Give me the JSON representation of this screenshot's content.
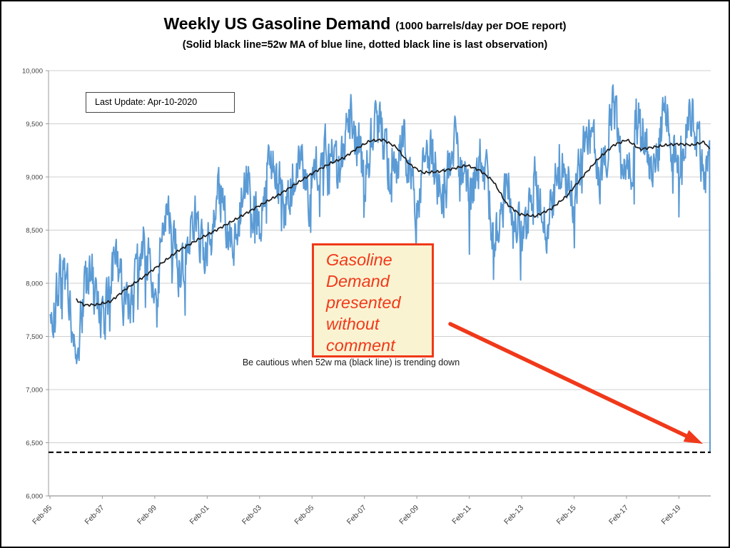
{
  "header": {
    "title": "Weekly US Gasoline Demand",
    "title_suffix": "(1000 barrels/day per DOE report)",
    "subtitle": "(Solid black line=52w MA of blue line, dotted black line is last observation)"
  },
  "annotations": {
    "last_update": "Last Update: Apr-10-2020",
    "comment_text": "Gasoline Demand presented without comment",
    "caution_text": "Be cautious when 52w ma (black line) is trending down"
  },
  "colors": {
    "blue_line": "#5B9BD5",
    "ma_line": "#1a1a1a",
    "dashed_line": "#111111",
    "red_accent": "#f0391a",
    "cream_fill": "#faf3d2",
    "gridline": "#cfcfcf",
    "axis": "#9b9b9b",
    "tick_text": "#3f3f3f"
  },
  "chart_data": {
    "type": "line",
    "title": "Weekly US Gasoline Demand",
    "units_label": "1000 barrels/day per DOE report",
    "xlabel": "",
    "ylabel": "",
    "ylim": [
      6000,
      10000
    ],
    "y_tick_step": 500,
    "y_tick_labels": [
      "10,000",
      "9,500",
      "9,000",
      "8,500",
      "8,000",
      "7,500",
      "7,000",
      "6,500",
      "6,000"
    ],
    "x_tick_labels": [
      "Feb-95",
      "Feb-97",
      "Feb-99",
      "Feb-01",
      "Feb-03",
      "Feb-05",
      "Feb-07",
      "Feb-09",
      "Feb-11",
      "Feb-13",
      "Feb-15",
      "Feb-17",
      "Feb-19"
    ],
    "x_start_year": 1995.083,
    "x_end_year": 2020.27,
    "grid": "horizontal-only",
    "legend_position": "none",
    "series": [
      {
        "name": "Weekly US gasoline demand",
        "color": "#5B9BD5",
        "style": "solid"
      },
      {
        "name": "52-week moving average of weekly demand",
        "color": "#1a1a1a",
        "style": "solid"
      },
      {
        "name": "Last observation",
        "color": "#111111",
        "style": "dashed",
        "value": 6410
      }
    ],
    "ma_anchor_points": [
      [
        1996.08,
        7845
      ],
      [
        1996.4,
        7795
      ],
      [
        1996.9,
        7800
      ],
      [
        1997.4,
        7830
      ],
      [
        1998.0,
        7950
      ],
      [
        1998.6,
        8050
      ],
      [
        1999.3,
        8180
      ],
      [
        2000.0,
        8310
      ],
      [
        2000.8,
        8420
      ],
      [
        2001.5,
        8510
      ],
      [
        2002.3,
        8620
      ],
      [
        2003.0,
        8720
      ],
      [
        2003.8,
        8830
      ],
      [
        2004.5,
        8940
      ],
      [
        2005.2,
        9050
      ],
      [
        2005.8,
        9130
      ],
      [
        2006.3,
        9180
      ],
      [
        2006.8,
        9270
      ],
      [
        2007.3,
        9340
      ],
      [
        2007.8,
        9350
      ],
      [
        2008.3,
        9280
      ],
      [
        2008.8,
        9120
      ],
      [
        2009.3,
        9040
      ],
      [
        2009.9,
        9050
      ],
      [
        2010.5,
        9080
      ],
      [
        2011.0,
        9110
      ],
      [
        2011.5,
        9060
      ],
      [
        2012.0,
        8960
      ],
      [
        2012.5,
        8750
      ],
      [
        2013.0,
        8650
      ],
      [
        2013.6,
        8630
      ],
      [
        2014.2,
        8700
      ],
      [
        2014.8,
        8820
      ],
      [
        2015.4,
        9000
      ],
      [
        2016.0,
        9170
      ],
      [
        2016.6,
        9300
      ],
      [
        2017.1,
        9350
      ],
      [
        2017.6,
        9260
      ],
      [
        2018.1,
        9280
      ],
      [
        2018.6,
        9300
      ],
      [
        2019.1,
        9310
      ],
      [
        2019.6,
        9300
      ],
      [
        2020.05,
        9330
      ],
      [
        2020.27,
        9255
      ]
    ],
    "weekly_seasonal_amplitude": 245,
    "weekly_noise_amplitude": 215,
    "weekly_value_range": [
      7170,
      9865
    ],
    "final_weeks": [
      9280,
      9340,
      6410
    ],
    "last_observation": 6410
  }
}
